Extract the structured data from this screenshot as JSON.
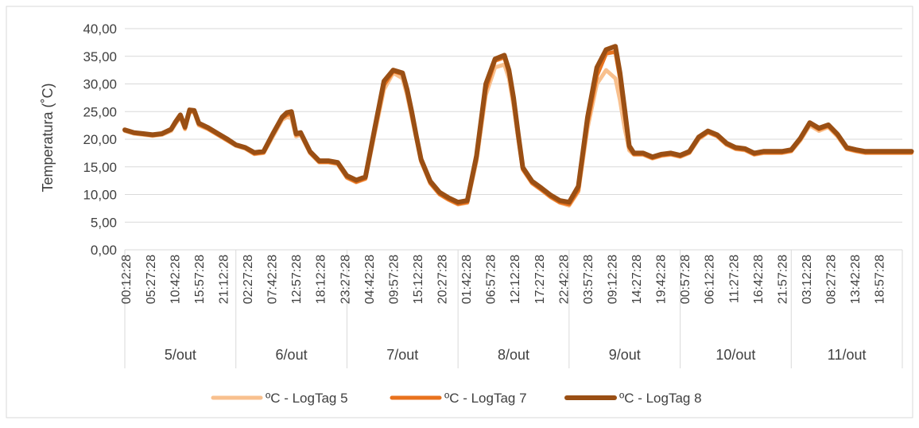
{
  "chart_data": {
    "type": "line",
    "title": "",
    "ylabel": "Temperatura (˚C)",
    "xlabel": "",
    "ylim": [
      0,
      40
    ],
    "yticks": [
      "0,00",
      "5,00",
      "10,00",
      "15,00",
      "20,00",
      "25,00",
      "30,00",
      "35,00",
      "40,00"
    ],
    "grid": true,
    "legend_position": "bottom",
    "days": [
      {
        "label": "5/out",
        "times": [
          "00:12:28",
          "05:27:28",
          "10:42:28",
          "15:57:28",
          "21:12:28"
        ]
      },
      {
        "label": "6/out",
        "times": [
          "02:27:28",
          "07:42:28",
          "12:57:28",
          "18:12:28",
          "23:27:28"
        ]
      },
      {
        "label": "7/out",
        "times": [
          "04:42:28",
          "09:57:28",
          "15:12:28",
          "20:27:28"
        ]
      },
      {
        "label": "8/out",
        "times": [
          "01:42:28",
          "06:57:28",
          "12:12:28",
          "17:27:28",
          "22:42:28"
        ]
      },
      {
        "label": "9/out",
        "times": [
          "03:57:28",
          "09:12:28",
          "14:27:28",
          "19:42:28"
        ]
      },
      {
        "label": "10/out",
        "times": [
          "00:57:28",
          "06:12:28",
          "11:27:28",
          "16:42:28",
          "21:57:28"
        ]
      },
      {
        "label": "11/out",
        "times": [
          "03:12:28",
          "08:27:28",
          "13:42:28",
          "18:57:28"
        ]
      }
    ],
    "x_hours": [
      0,
      2,
      4,
      6,
      8,
      10,
      11,
      12,
      13,
      14,
      15,
      16,
      18,
      20,
      22,
      24,
      26,
      28,
      30,
      32,
      34,
      35,
      36,
      37,
      38,
      40,
      42,
      44,
      46,
      48,
      50,
      52,
      54,
      56,
      58,
      60,
      61,
      62,
      63,
      64,
      66,
      68,
      70,
      72,
      74,
      76,
      78,
      80,
      82,
      83,
      84,
      85,
      86,
      88,
      90,
      92,
      94,
      96,
      98,
      100,
      102,
      104,
      106,
      107,
      108,
      109,
      110,
      112,
      114,
      116,
      118,
      120,
      122,
      124,
      126,
      128,
      130,
      132,
      134,
      136,
      138,
      140,
      142,
      144,
      146,
      148,
      150,
      152,
      154,
      156,
      158,
      160,
      161,
      162,
      163,
      164,
      166,
      168,
      170
    ],
    "series": [
      {
        "name": "ºC - LogTag 5",
        "color": "#f8c08e",
        "values": [
          21.5,
          21.0,
          20.8,
          20.6,
          20.8,
          21.5,
          22.8,
          24.0,
          21.8,
          25.0,
          24.8,
          22.5,
          21.8,
          20.8,
          19.8,
          18.8,
          18.3,
          17.3,
          17.5,
          20.5,
          23.5,
          24.0,
          23.8,
          20.5,
          20.8,
          17.5,
          15.8,
          15.8,
          15.5,
          13.0,
          12.2,
          12.8,
          21.0,
          29.0,
          32.0,
          31.0,
          28.0,
          24.0,
          20.0,
          16.0,
          12.0,
          10.0,
          9.0,
          8.2,
          8.5,
          16.0,
          28.0,
          33.0,
          33.5,
          31.0,
          26.0,
          20.0,
          14.5,
          12.0,
          10.8,
          9.5,
          8.5,
          8.0,
          10.5,
          22.0,
          30.0,
          32.5,
          31.0,
          27.0,
          22.0,
          18.0,
          17.2,
          17.2,
          16.5,
          17.0,
          17.2,
          16.8,
          17.5,
          20.0,
          21.2,
          20.5,
          19.0,
          18.2,
          18.0,
          17.2,
          17.5,
          17.5,
          17.5,
          17.8,
          19.8,
          22.5,
          21.5,
          22.2,
          20.5,
          18.2,
          17.8,
          17.5,
          17.5,
          17.5,
          17.5,
          17.5,
          17.5,
          17.5,
          17.5
        ]
      },
      {
        "name": "ºC - LogTag 7",
        "color": "#e9721d",
        "values": [
          21.6,
          21.1,
          20.9,
          20.7,
          20.9,
          21.7,
          23.0,
          24.2,
          22.0,
          25.1,
          25.0,
          22.7,
          21.9,
          20.9,
          19.9,
          18.9,
          18.4,
          17.4,
          17.6,
          20.8,
          23.8,
          24.4,
          24.6,
          20.8,
          21.0,
          17.6,
          15.9,
          15.9,
          15.6,
          13.1,
          12.3,
          12.9,
          21.5,
          29.8,
          32.3,
          31.8,
          28.5,
          24.5,
          20.2,
          16.1,
          12.1,
          10.1,
          9.1,
          8.3,
          8.6,
          16.5,
          29.0,
          34.2,
          34.8,
          32.0,
          26.8,
          20.5,
          14.6,
          12.1,
          10.9,
          9.6,
          8.6,
          8.2,
          10.8,
          23.0,
          31.5,
          35.5,
          35.8,
          31.0,
          24.5,
          18.5,
          17.3,
          17.3,
          16.6,
          17.1,
          17.3,
          16.9,
          17.6,
          20.2,
          21.3,
          20.6,
          19.1,
          18.3,
          18.1,
          17.3,
          17.6,
          17.6,
          17.6,
          17.9,
          20.0,
          22.8,
          21.8,
          22.4,
          20.7,
          18.3,
          17.9,
          17.6,
          17.6,
          17.6,
          17.6,
          17.6,
          17.6,
          17.6,
          17.6
        ]
      },
      {
        "name": "ºC - LogTag 8",
        "color": "#9a4f14",
        "values": [
          21.7,
          21.2,
          21.0,
          20.8,
          21.0,
          21.8,
          23.2,
          24.4,
          22.2,
          25.3,
          25.2,
          22.9,
          22.1,
          21.1,
          20.1,
          19.0,
          18.5,
          17.6,
          17.8,
          21.0,
          24.0,
          24.8,
          25.0,
          21.0,
          21.2,
          17.8,
          16.1,
          16.1,
          15.8,
          13.4,
          12.6,
          13.2,
          22.0,
          30.5,
          32.5,
          32.0,
          29.0,
          25.0,
          20.5,
          16.4,
          12.4,
          10.4,
          9.4,
          8.6,
          8.9,
          17.0,
          30.0,
          34.5,
          35.2,
          32.5,
          27.5,
          21.0,
          14.9,
          12.4,
          11.2,
          9.9,
          8.9,
          8.6,
          11.5,
          24.0,
          33.0,
          36.2,
          36.8,
          32.0,
          25.5,
          18.8,
          17.5,
          17.5,
          16.8,
          17.3,
          17.5,
          17.1,
          17.8,
          20.4,
          21.5,
          20.8,
          19.3,
          18.5,
          18.3,
          17.5,
          17.8,
          17.8,
          17.8,
          18.1,
          20.2,
          23.0,
          22.0,
          22.6,
          20.9,
          18.5,
          18.1,
          17.8,
          17.8,
          17.8,
          17.8,
          17.8,
          17.8,
          17.8,
          17.8
        ]
      }
    ]
  }
}
